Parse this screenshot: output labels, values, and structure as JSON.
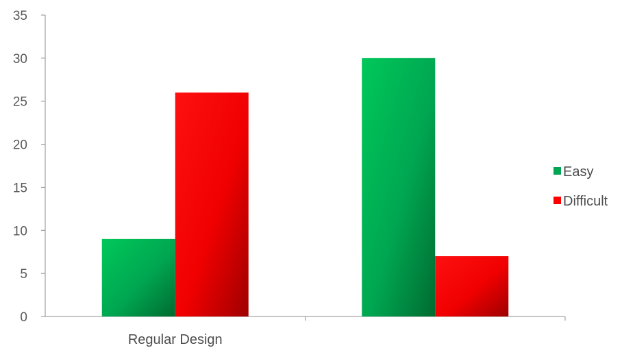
{
  "chart_data": {
    "type": "bar",
    "title": "",
    "xlabel": "",
    "ylabel": "",
    "categories": [
      "Regular Design",
      ""
    ],
    "series": [
      {
        "name": "Easy",
        "values": [
          9,
          30
        ],
        "color": "#00a651"
      },
      {
        "name": "Difficult",
        "values": [
          26,
          7
        ],
        "color": "#ff0000"
      }
    ],
    "ylim": [
      0,
      35
    ],
    "yticks": [
      0,
      5,
      10,
      15,
      20,
      25,
      30,
      35
    ],
    "ytick_labels": [
      "0",
      "5",
      "10",
      "15",
      "20",
      "25",
      "30",
      "35"
    ],
    "grid": false,
    "legend": {
      "position": "right",
      "entries": [
        "Easy",
        "Difficult"
      ]
    },
    "colors": {
      "axis": "#8c8c8c",
      "text": "#5a5a5a"
    }
  }
}
